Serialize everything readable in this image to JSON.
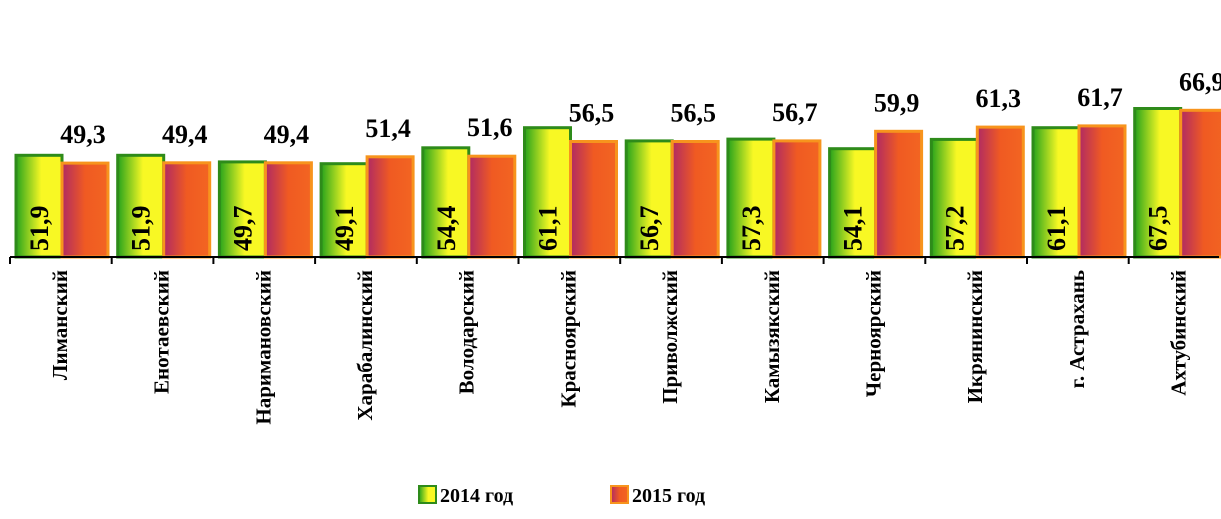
{
  "chart_data": {
    "type": "bar",
    "categories": [
      "Лиманский",
      "Енотаевский",
      "Наримановский",
      "Харабалинский",
      "Володарский",
      "Красноярский",
      "Приволжский",
      "Камызякский",
      "Черноярский",
      "Икрянинский",
      "г. Астрахань",
      "Ахтубинский"
    ],
    "series": [
      {
        "name": "2014 год",
        "values": [
          51.9,
          51.9,
          49.7,
          49.1,
          54.4,
          61.1,
          56.7,
          57.3,
          54.1,
          57.2,
          61.1,
          67.5
        ],
        "labels": [
          "51,9",
          "51,9",
          "49,7",
          "49,1",
          "54,4",
          "61,1",
          "56,7",
          "57,3",
          "54,1",
          "57,2",
          "61,1",
          "67,5"
        ],
        "color": "#f5f52a",
        "border_color": "#2e8b1a"
      },
      {
        "name": "2015 год",
        "values": [
          49.3,
          49.4,
          49.4,
          51.4,
          51.6,
          56.5,
          56.5,
          56.7,
          59.9,
          61.3,
          61.7,
          66.9
        ],
        "labels": [
          "49,3",
          "49,4",
          "49,4",
          "51,4",
          "51,6",
          "56,5",
          "56,5",
          "56,7",
          "59,9",
          "61,3",
          "61,7",
          "66,9"
        ],
        "color": "#f26522",
        "border_color": "#f7941d"
      }
    ],
    "ylim": [
      0,
      70
    ],
    "legend_position": "bottom",
    "grid": false
  }
}
